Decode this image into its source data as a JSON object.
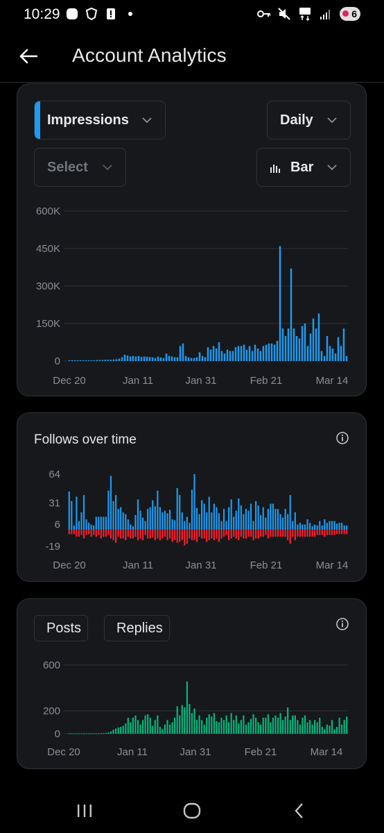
{
  "status_bar": {
    "time": "10:29",
    "left_icons": [
      "app-notification-icon",
      "shield-icon",
      "alert-icon",
      "dot-icon"
    ],
    "right_icons": [
      "key-icon",
      "mute-icon",
      "5g-icon",
      "signal-icon"
    ],
    "battery": "6"
  },
  "header": {
    "title": "Account Analytics"
  },
  "controls": {
    "metric": "Impressions",
    "period": "Daily",
    "compare": "Select",
    "chart_type": "Bar"
  },
  "colors": {
    "blue": "#1d9bf0",
    "red": "#f4212e",
    "green": "#00ba7c",
    "background": "#000000",
    "card": "#16181c"
  },
  "follows_title": "Follows over time",
  "legend": {
    "posts": "Posts",
    "replies": "Replies"
  },
  "chart_data": [
    {
      "type": "bar",
      "y_ticks": [
        "0",
        "150K",
        "300K",
        "450K",
        "600K"
      ],
      "ylim": [
        0,
        600000
      ],
      "x_ticks": [
        "Dec 20",
        "Jan 11",
        "Jan 31",
        "Feb 21",
        "Mar 14"
      ],
      "series": [
        {
          "values": [
            3000,
            3000,
            3000,
            3000,
            3000,
            3000,
            3000,
            3000,
            3000,
            3000,
            4000,
            4000,
            4000,
            5000,
            5000,
            5000,
            6000,
            7000,
            9000,
            15000,
            25000,
            22000,
            18000,
            20000,
            18000,
            20000,
            16000,
            18000,
            17000,
            16000,
            15000,
            12000,
            18000,
            14000,
            12000,
            30000,
            20000,
            18000,
            15000,
            15000,
            60000,
            70000,
            20000,
            15000,
            12000,
            12000,
            15000,
            35000,
            20000,
            15000,
            55000,
            45000,
            60000,
            50000,
            75000,
            40000,
            30000,
            45000,
            40000,
            40000,
            55000,
            60000,
            60000,
            65000,
            45000,
            60000,
            40000,
            65000,
            50000,
            40000,
            60000,
            65000,
            70000,
            70000,
            65000,
            80000,
            460000,
            130000,
            100000,
            130000,
            370000,
            130000,
            100000,
            90000,
            140000,
            150000,
            60000,
            110000,
            170000,
            130000,
            190000,
            40000,
            20000,
            100000,
            60000,
            50000,
            30000,
            95000,
            60000,
            130000,
            20000
          ]
        }
      ]
    },
    {
      "type": "bar",
      "y_ticks": [
        "-19",
        "6",
        "31",
        "64"
      ],
      "ylim": [
        -19,
        64
      ],
      "x_ticks": [
        "Dec 20",
        "Jan 11",
        "Jan 31",
        "Feb 21",
        "Mar 14"
      ],
      "series": [
        {
          "values": [
            44,
            33,
            5,
            38,
            10,
            20,
            40,
            12,
            8,
            6,
            5,
            15,
            15,
            15,
            15,
            15,
            45,
            62,
            33,
            40,
            24,
            26,
            20,
            18,
            12,
            6,
            4,
            17,
            35,
            22,
            14,
            10,
            24,
            26,
            34,
            27,
            45,
            26,
            20,
            22,
            19,
            23,
            12,
            11,
            48,
            40,
            20,
            10,
            15,
            8,
            46,
            64,
            25,
            18,
            34,
            30,
            20,
            38,
            20,
            30,
            26,
            19,
            10,
            24,
            10,
            26,
            35,
            15,
            22,
            36,
            28,
            18,
            24,
            22,
            30,
            10,
            33,
            28,
            17,
            26,
            14,
            24,
            30,
            30,
            24,
            24,
            18,
            14,
            24,
            18,
            40,
            10,
            20,
            6,
            8,
            6,
            6,
            12,
            8,
            4,
            6,
            5,
            10,
            5,
            12,
            8,
            10,
            10,
            10,
            7,
            8,
            8,
            5,
            5
          ]
        },
        {
          "values": [
            -5,
            -5,
            -5,
            -8,
            -8,
            -6,
            -10,
            -6,
            -5,
            -8,
            -6,
            -8,
            -6,
            -10,
            -8,
            -8,
            -6,
            -10,
            -12,
            -15,
            -8,
            -10,
            -10,
            -12,
            -8,
            -10,
            -10,
            -8,
            -12,
            -10,
            -12,
            -6,
            -10,
            -10,
            -9,
            -12,
            -10,
            -12,
            -10,
            -8,
            -12,
            -10,
            -14,
            -12,
            -15,
            -14,
            -12,
            -18,
            -16,
            -10,
            -12,
            -12,
            -14,
            -8,
            -10,
            -10,
            -14,
            -12,
            -10,
            -12,
            -10,
            -14,
            -10,
            -8,
            -6,
            -12,
            -10,
            -8,
            -10,
            -12,
            -8,
            -10,
            -10,
            -8,
            -8,
            -12,
            -10,
            -10,
            -8,
            -8,
            -6,
            -10,
            -8,
            -8,
            -8,
            -8,
            -8,
            -8,
            -8,
            -12,
            -16,
            -8,
            -12,
            -8,
            -8,
            -8,
            -8,
            -8,
            -8,
            -8,
            -8,
            -6,
            -6,
            -6,
            -8,
            -6,
            -6,
            -6,
            -6,
            -5,
            -5,
            -5,
            -5,
            -5
          ]
        }
      ]
    },
    {
      "type": "bar",
      "y_ticks": [
        "0",
        "200",
        "600"
      ],
      "ylim": [
        0,
        600
      ],
      "x_ticks": [
        "Dec 20",
        "Jan 11",
        "Jan 31",
        "Feb 21",
        "Mar 14"
      ],
      "series": [
        {
          "name": "Posts",
          "values": []
        },
        {
          "name": "Replies",
          "values": [
            3,
            3,
            3,
            3,
            3,
            3,
            3,
            3,
            3,
            3,
            4,
            4,
            4,
            5,
            6,
            8,
            12,
            20,
            35,
            45,
            55,
            60,
            70,
            90,
            140,
            100,
            140,
            160,
            120,
            80,
            120,
            160,
            170,
            140,
            70,
            120,
            160,
            60,
            40,
            80,
            120,
            80,
            100,
            140,
            240,
            160,
            250,
            230,
            455,
            260,
            180,
            220,
            120,
            160,
            120,
            80,
            140,
            170,
            150,
            180,
            110,
            100,
            140,
            120,
            160,
            100,
            180,
            120,
            160,
            90,
            120,
            160,
            80,
            100,
            130,
            170,
            140,
            100,
            80,
            140,
            140,
            170,
            100,
            140,
            160,
            140,
            180,
            120,
            150,
            230,
            120,
            160,
            160,
            120,
            80,
            140,
            160,
            100,
            120,
            80,
            120,
            100,
            140,
            60,
            40,
            80,
            70,
            120,
            40,
            60,
            140,
            80,
            120,
            150
          ]
        }
      ]
    }
  ]
}
